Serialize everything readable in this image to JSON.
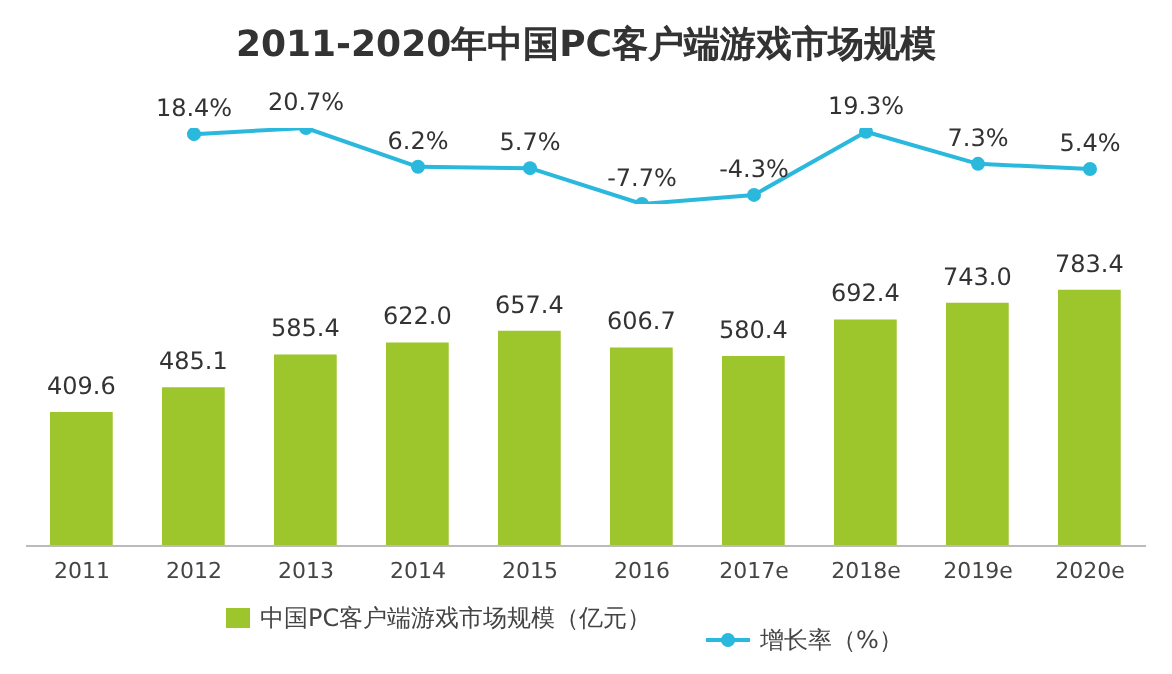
{
  "chart_data": [
    {
      "type": "line",
      "title": "2011-2020年中国PC客户端游戏市场规模",
      "categories": [
        null,
        null,
        null,
        null,
        null,
        null,
        null,
        null,
        null,
        null
      ],
      "series": [
        {
          "name": "增长率（%）",
          "color": "#2ab8dc",
          "values": [
            null,
            18.4,
            20.7,
            6.2,
            5.7,
            -7.7,
            -4.3,
            19.3,
            7.3,
            5.4
          ],
          "value_labels": [
            null,
            "18.4%",
            "20.7%",
            "6.2%",
            "5.7%",
            "-7.7%",
            "-4.3%",
            "19.3%",
            "7.3%",
            "5.4%"
          ]
        }
      ],
      "marker": "circle",
      "grid": false,
      "legend": "bottom",
      "tick_labels": false
    },
    {
      "type": "bar",
      "categories": [
        "2011",
        "2012",
        "2013",
        "2014",
        "2015",
        "2016",
        "2017e",
        "2018e",
        "2019e",
        "2020e"
      ],
      "series": [
        {
          "name": "中国PC客户端游戏市场规模（亿元）",
          "color": "#9dc62d",
          "values": [
            409.6,
            485.1,
            585.4,
            622.0,
            657.4,
            606.7,
            580.4,
            692.4,
            743.0,
            783.4
          ],
          "value_labels": [
            "409.6",
            "485.1",
            "585.4",
            "622.0",
            "657.4",
            "606.7",
            "580.4",
            "692.4",
            "743.0",
            "783.4"
          ]
        }
      ],
      "grid": false,
      "legend": "bottom",
      "tick_labels": "x"
    }
  ]
}
